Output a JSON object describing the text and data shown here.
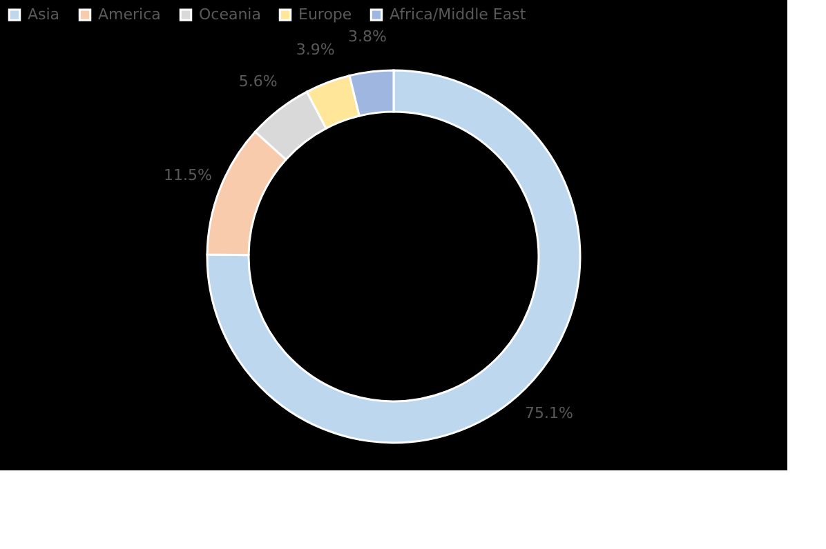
{
  "chart_data": {
    "type": "donut",
    "categories": [
      "Asia",
      "America",
      "Oceania",
      "Europe",
      "Africa/Middle East"
    ],
    "values": [
      75.1,
      11.5,
      5.6,
      3.9,
      3.8
    ],
    "colors": [
      "#bdd7ee",
      "#f8cbad",
      "#d9d9d9",
      "#ffe699",
      "#9fb6e0"
    ],
    "value_labels": [
      "75.1%",
      "11.5%",
      "5.6%",
      "3.9%",
      "3.8%"
    ],
    "legend": "top"
  }
}
